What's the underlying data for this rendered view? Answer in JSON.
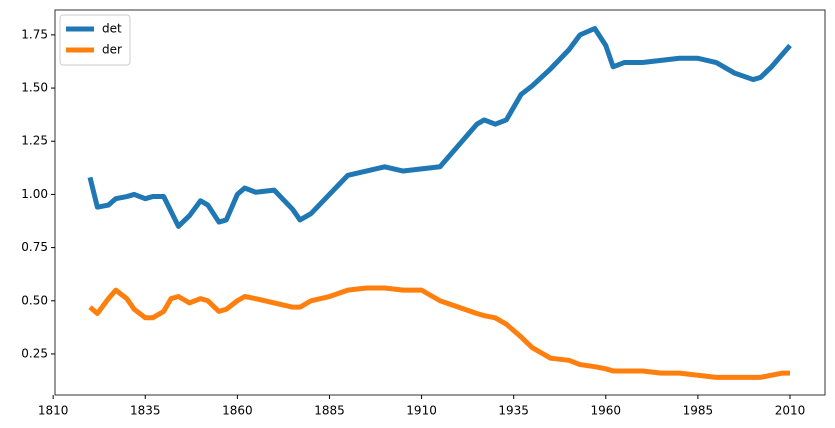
{
  "chart_data": {
    "type": "line",
    "x": [
      1820,
      1822,
      1825,
      1827,
      1830,
      1832,
      1835,
      1837,
      1840,
      1842,
      1844,
      1847,
      1850,
      1852,
      1855,
      1857,
      1860,
      1862,
      1865,
      1870,
      1875,
      1877,
      1880,
      1885,
      1890,
      1895,
      1900,
      1905,
      1910,
      1915,
      1920,
      1925,
      1927,
      1930,
      1933,
      1937,
      1940,
      1945,
      1950,
      1953,
      1957,
      1960,
      1962,
      1965,
      1970,
      1975,
      1980,
      1985,
      1990,
      1995,
      2000,
      2002,
      2005,
      2008,
      2010
    ],
    "series": [
      {
        "name": "det",
        "color": "#1f77b4",
        "values": [
          1.08,
          0.94,
          0.95,
          0.98,
          0.99,
          1.0,
          0.98,
          0.99,
          0.99,
          0.92,
          0.85,
          0.9,
          0.97,
          0.95,
          0.87,
          0.88,
          1.0,
          1.03,
          1.01,
          1.02,
          0.93,
          0.88,
          0.91,
          1.0,
          1.09,
          1.11,
          1.13,
          1.11,
          1.12,
          1.13,
          1.23,
          1.33,
          1.35,
          1.33,
          1.35,
          1.47,
          1.51,
          1.59,
          1.68,
          1.75,
          1.78,
          1.7,
          1.6,
          1.62,
          1.62,
          1.63,
          1.64,
          1.64,
          1.62,
          1.57,
          1.54,
          1.55,
          1.6,
          1.66,
          1.7
        ]
      },
      {
        "name": "der",
        "color": "#ff7f0e",
        "values": [
          0.47,
          0.44,
          0.51,
          0.55,
          0.51,
          0.46,
          0.42,
          0.42,
          0.45,
          0.51,
          0.52,
          0.49,
          0.51,
          0.5,
          0.45,
          0.46,
          0.5,
          0.52,
          0.51,
          0.49,
          0.47,
          0.47,
          0.5,
          0.52,
          0.55,
          0.56,
          0.56,
          0.55,
          0.55,
          0.5,
          0.47,
          0.44,
          0.43,
          0.42,
          0.39,
          0.33,
          0.28,
          0.23,
          0.22,
          0.2,
          0.19,
          0.18,
          0.17,
          0.17,
          0.17,
          0.16,
          0.16,
          0.15,
          0.14,
          0.14,
          0.14,
          0.14,
          0.15,
          0.16,
          0.16
        ]
      }
    ],
    "xlim": [
      1810.5,
      2019.5
    ],
    "xticks": [
      1810,
      1835,
      1860,
      1885,
      1910,
      1935,
      1960,
      1985,
      2010
    ],
    "ylim": [
      0.057,
      1.867
    ],
    "yticks": [
      0.25,
      {
        "value": 0.5,
        "label": "0.50"
      },
      0.75,
      {
        "value": 1,
        "label": "1.00"
      },
      1.25,
      {
        "value": 1.5,
        "label": "1.50"
      },
      1.75
    ],
    "grid": false,
    "legend": "upper-left"
  }
}
